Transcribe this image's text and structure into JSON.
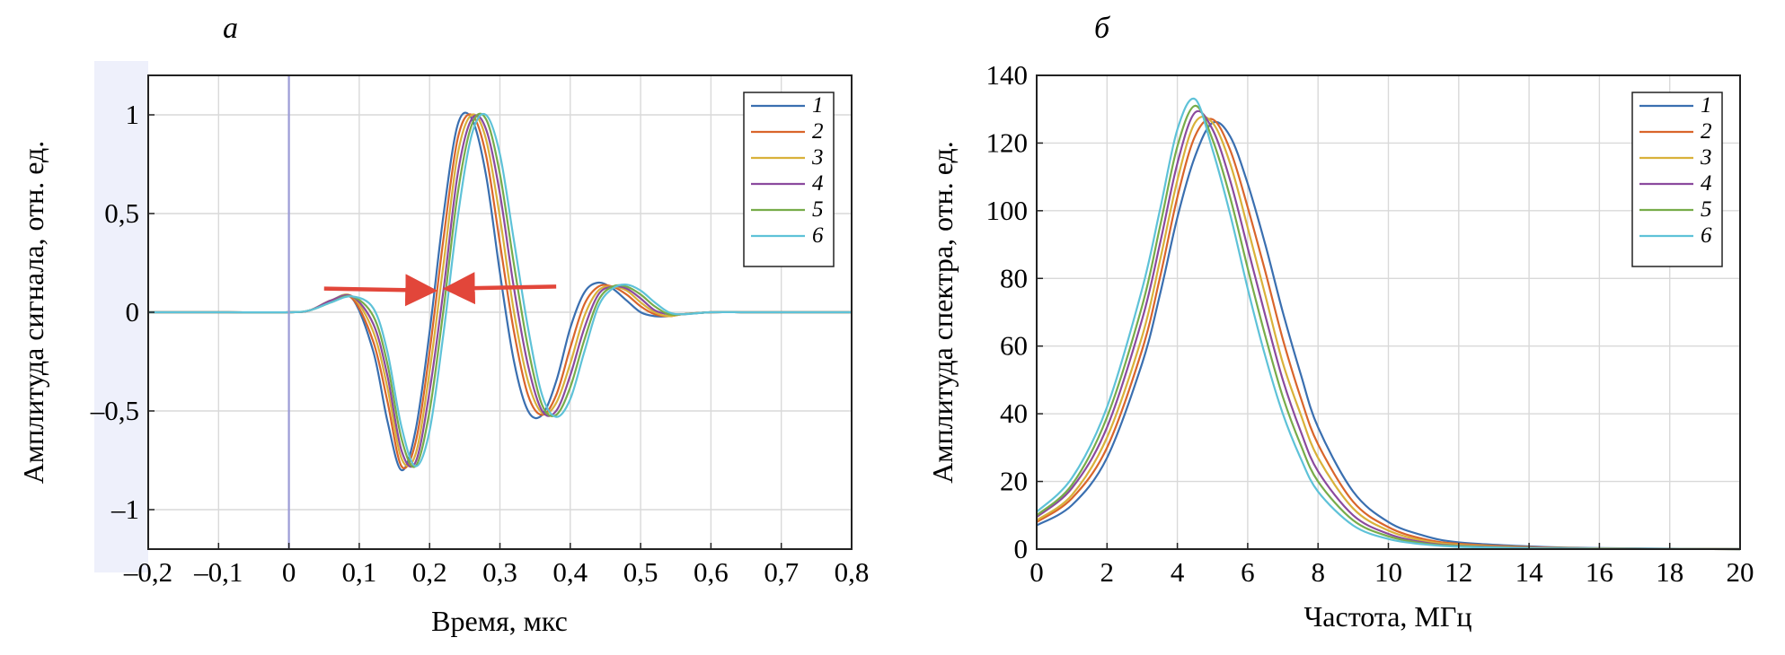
{
  "colors": {
    "series": [
      "#3a6fb0",
      "#d9652b",
      "#d9b13a",
      "#8b4a9e",
      "#77ac4a",
      "#5ec2d8"
    ],
    "arrow": "#e2463a",
    "zero_line": "#9b9bd6",
    "shade": "#eef0fb"
  },
  "chart_data": [
    {
      "panel_label": "а",
      "type": "line",
      "xlabel": "Время, мкс",
      "ylabel": "Амплитуда сигнала, отн. ед.",
      "xlim": [
        -0.2,
        0.8
      ],
      "ylim": [
        -1.2,
        1.2
      ],
      "xticks": [
        -0.2,
        -0.1,
        0,
        0.1,
        0.2,
        0.3,
        0.4,
        0.5,
        0.6,
        0.7,
        0.8
      ],
      "xtick_labels": [
        "–0,2",
        "–0,1",
        "0",
        "0,1",
        "0,2",
        "0,3",
        "0,4",
        "0,5",
        "0,6",
        "0,7",
        "0,8"
      ],
      "yticks": [
        -1,
        -0.5,
        0,
        0.5,
        1
      ],
      "ytick_labels": [
        "–1",
        "–0,5",
        "0",
        "0,5",
        "1"
      ],
      "grid": true,
      "legend_position": "top-right",
      "annotations": [
        {
          "type": "arrow",
          "from": [
            0.05,
            0.12
          ],
          "to": [
            0.2,
            0.11
          ]
        },
        {
          "type": "arrow",
          "from": [
            0.38,
            0.13
          ],
          "to": [
            0.23,
            0.12
          ]
        },
        {
          "type": "vline",
          "x": 0
        }
      ],
      "series": [
        {
          "name": "1",
          "x": [
            -0.2,
            -0.1,
            0,
            0.03,
            0.06,
            0.09,
            0.12,
            0.14,
            0.16,
            0.18,
            0.2,
            0.22,
            0.24,
            0.26,
            0.28,
            0.3,
            0.32,
            0.34,
            0.36,
            0.38,
            0.4,
            0.42,
            0.44,
            0.46,
            0.48,
            0.5,
            0.52,
            0.54,
            0.56,
            0.6,
            0.65,
            0.7,
            0.8
          ],
          "y": [
            0,
            0,
            0,
            0.01,
            0.06,
            0.07,
            -0.2,
            -0.55,
            -0.8,
            -0.6,
            -0.1,
            0.5,
            0.95,
            0.98,
            0.7,
            0.2,
            -0.25,
            -0.5,
            -0.52,
            -0.35,
            -0.08,
            0.1,
            0.15,
            0.12,
            0.06,
            0.0,
            -0.02,
            -0.02,
            -0.01,
            0,
            0,
            0,
            0
          ]
        },
        {
          "name": "2",
          "x": [
            -0.2,
            -0.1,
            0,
            0.03,
            0.06,
            0.09,
            0.12,
            0.14,
            0.16,
            0.18,
            0.2,
            0.22,
            0.24,
            0.26,
            0.28,
            0.3,
            0.32,
            0.34,
            0.36,
            0.38,
            0.4,
            0.42,
            0.44,
            0.46,
            0.48,
            0.5,
            0.52,
            0.54,
            0.56,
            0.6,
            0.65,
            0.7,
            0.8
          ],
          "y": [
            0,
            0,
            0,
            0.01,
            0.06,
            0.07,
            -0.15,
            -0.45,
            -0.78,
            -0.66,
            -0.2,
            0.38,
            0.88,
            1.0,
            0.8,
            0.35,
            -0.1,
            -0.42,
            -0.52,
            -0.42,
            -0.18,
            0.04,
            0.13,
            0.13,
            0.09,
            0.03,
            -0.01,
            -0.02,
            -0.01,
            0,
            0,
            0,
            0
          ]
        },
        {
          "name": "3",
          "x": [
            -0.2,
            -0.1,
            0,
            0.03,
            0.06,
            0.09,
            0.12,
            0.14,
            0.16,
            0.18,
            0.2,
            0.22,
            0.24,
            0.26,
            0.28,
            0.3,
            0.32,
            0.34,
            0.36,
            0.38,
            0.4,
            0.42,
            0.44,
            0.46,
            0.48,
            0.5,
            0.52,
            0.54,
            0.56,
            0.6,
            0.65,
            0.7,
            0.8
          ],
          "y": [
            0,
            0,
            0,
            0.01,
            0.06,
            0.08,
            -0.1,
            -0.38,
            -0.74,
            -0.72,
            -0.3,
            0.25,
            0.8,
            1.0,
            0.88,
            0.48,
            0.0,
            -0.35,
            -0.51,
            -0.46,
            -0.26,
            -0.02,
            0.11,
            0.13,
            0.11,
            0.05,
            0.0,
            -0.02,
            -0.01,
            0,
            0,
            0,
            0
          ]
        },
        {
          "name": "4",
          "x": [
            -0.2,
            -0.1,
            0,
            0.03,
            0.06,
            0.09,
            0.12,
            0.14,
            0.16,
            0.18,
            0.2,
            0.22,
            0.24,
            0.26,
            0.28,
            0.3,
            0.32,
            0.34,
            0.36,
            0.38,
            0.4,
            0.42,
            0.44,
            0.46,
            0.48,
            0.5,
            0.52,
            0.54,
            0.56,
            0.6,
            0.65,
            0.7,
            0.8
          ],
          "y": [
            0,
            0,
            0,
            0.01,
            0.06,
            0.08,
            -0.06,
            -0.32,
            -0.7,
            -0.76,
            -0.4,
            0.12,
            0.7,
            0.98,
            0.93,
            0.6,
            0.12,
            -0.27,
            -0.5,
            -0.5,
            -0.32,
            -0.08,
            0.09,
            0.13,
            0.12,
            0.07,
            0.01,
            -0.01,
            -0.01,
            0,
            0,
            0,
            0
          ]
        },
        {
          "name": "5",
          "x": [
            -0.2,
            -0.1,
            0,
            0.03,
            0.06,
            0.09,
            0.12,
            0.14,
            0.16,
            0.18,
            0.2,
            0.22,
            0.24,
            0.26,
            0.28,
            0.3,
            0.32,
            0.34,
            0.36,
            0.38,
            0.4,
            0.42,
            0.44,
            0.46,
            0.48,
            0.5,
            0.52,
            0.54,
            0.56,
            0.6,
            0.65,
            0.7,
            0.8
          ],
          "y": [
            0,
            0,
            0,
            0.01,
            0.05,
            0.08,
            -0.02,
            -0.26,
            -0.64,
            -0.78,
            -0.5,
            0.02,
            0.6,
            0.95,
            0.98,
            0.7,
            0.24,
            -0.18,
            -0.47,
            -0.52,
            -0.38,
            -0.14,
            0.06,
            0.13,
            0.13,
            0.09,
            0.03,
            -0.01,
            -0.01,
            0,
            0,
            0,
            0
          ]
        },
        {
          "name": "6",
          "x": [
            -0.2,
            -0.1,
            0,
            0.03,
            0.06,
            0.09,
            0.12,
            0.14,
            0.16,
            0.18,
            0.2,
            0.22,
            0.24,
            0.26,
            0.28,
            0.3,
            0.32,
            0.34,
            0.36,
            0.38,
            0.4,
            0.42,
            0.44,
            0.46,
            0.48,
            0.5,
            0.52,
            0.54,
            0.56,
            0.6,
            0.65,
            0.7,
            0.8
          ],
          "y": [
            0,
            0,
            0,
            0.01,
            0.05,
            0.08,
            0.02,
            -0.2,
            -0.58,
            -0.78,
            -0.6,
            -0.1,
            0.48,
            0.9,
            1.0,
            0.8,
            0.36,
            -0.08,
            -0.42,
            -0.53,
            -0.44,
            -0.2,
            0.03,
            0.12,
            0.14,
            0.11,
            0.05,
            0.0,
            -0.01,
            0,
            0,
            0,
            0
          ]
        }
      ]
    },
    {
      "panel_label": "б",
      "type": "line",
      "xlabel": "Частота, МГц",
      "ylabel": "Амплитуда спектра, отн. ед.",
      "xlim": [
        0,
        20
      ],
      "ylim": [
        0,
        140
      ],
      "xticks": [
        0,
        2,
        4,
        6,
        8,
        10,
        12,
        14,
        16,
        18,
        20
      ],
      "xtick_labels": [
        "0",
        "2",
        "4",
        "6",
        "8",
        "10",
        "12",
        "14",
        "16",
        "18",
        "20"
      ],
      "yticks": [
        0,
        20,
        40,
        60,
        80,
        100,
        120,
        140
      ],
      "ytick_labels": [
        "0",
        "20",
        "40",
        "60",
        "80",
        "100",
        "120",
        "140"
      ],
      "grid": true,
      "legend_position": "top-right",
      "series": [
        {
          "name": "1",
          "x": [
            0,
            1,
            2,
            3,
            3.5,
            4,
            4.5,
            5,
            5.5,
            6,
            6.5,
            7,
            7.5,
            8,
            9,
            10,
            11,
            12,
            14,
            16,
            20
          ],
          "y": [
            7,
            13,
            27,
            55,
            75,
            98,
            116,
            126,
            122,
            108,
            90,
            70,
            52,
            36,
            17,
            8,
            4,
            2,
            0.8,
            0.3,
            0
          ]
        },
        {
          "name": "2",
          "x": [
            0,
            1,
            2,
            3,
            3.5,
            4,
            4.5,
            5,
            5.5,
            6,
            6.5,
            7,
            7.5,
            8,
            9,
            10,
            11,
            12,
            14,
            16,
            20
          ],
          "y": [
            8,
            15,
            30,
            59,
            80,
            104,
            122,
            127,
            118,
            101,
            82,
            62,
            45,
            31,
            14,
            6.5,
            3,
            1.6,
            0.6,
            0.2,
            0
          ]
        },
        {
          "name": "3",
          "x": [
            0,
            1,
            2,
            3,
            3.5,
            4,
            4.5,
            5,
            5.5,
            6,
            6.5,
            7,
            7.5,
            8,
            9,
            10,
            11,
            12,
            14,
            16,
            20
          ],
          "y": [
            8.5,
            16,
            33,
            63,
            85,
            109,
            126,
            126,
            114,
            95,
            75,
            55,
            40,
            27,
            12,
            5.5,
            2.5,
            1.3,
            0.5,
            0.2,
            0
          ]
        },
        {
          "name": "4",
          "x": [
            0,
            1,
            2,
            3,
            3.5,
            4,
            4.5,
            5,
            5.5,
            6,
            6.5,
            7,
            7.5,
            8,
            9,
            10,
            11,
            12,
            14,
            16,
            20
          ],
          "y": [
            9.5,
            18,
            36,
            68,
            90,
            114,
            129,
            124,
            109,
            89,
            69,
            50,
            35,
            23,
            10,
            4.5,
            2,
            1,
            0.4,
            0.1,
            0
          ]
        },
        {
          "name": "5",
          "x": [
            0,
            1,
            2,
            3,
            3.5,
            4,
            4.5,
            5,
            5.5,
            6,
            6.5,
            7,
            7.5,
            8,
            9,
            10,
            11,
            12,
            14,
            16,
            20
          ],
          "y": [
            10,
            19,
            39,
            72,
            95,
            119,
            131,
            121,
            104,
            83,
            63,
            45,
            31,
            20,
            8.5,
            3.8,
            1.7,
            0.9,
            0.3,
            0.1,
            0
          ]
        },
        {
          "name": "6",
          "x": [
            0,
            1,
            2,
            3,
            3.5,
            4,
            4.5,
            5,
            5.5,
            6,
            6.5,
            7,
            7.5,
            8,
            9,
            10,
            11,
            12,
            14,
            16,
            20
          ],
          "y": [
            11,
            21,
            42,
            77,
            100,
            124,
            133,
            118,
            99,
            77,
            57,
            40,
            27,
            17,
            7,
            3,
            1.4,
            0.7,
            0.25,
            0.1,
            0
          ]
        }
      ]
    }
  ]
}
